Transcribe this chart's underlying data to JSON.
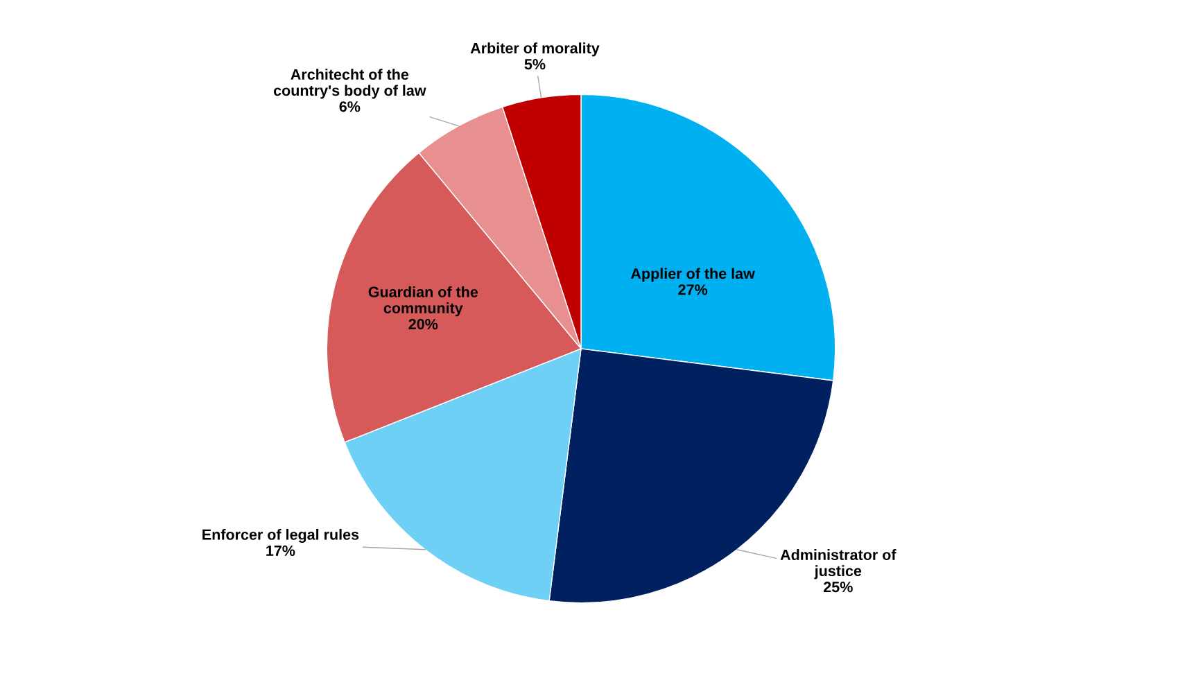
{
  "chart_data": {
    "type": "pie",
    "categories": [
      "Applier of the law",
      "Administrator of\njustice",
      "Enforcer of legal rules",
      "Guardian of the\ncommunity",
      "Architecht of the\ncountry's body of law",
      "Arbiter of morality"
    ],
    "values": [
      27,
      25,
      17,
      20,
      6,
      5
    ],
    "value_labels": [
      "27%",
      "25%",
      "17%",
      "20%",
      "6%",
      "5%"
    ],
    "colors": [
      "#00b0f0",
      "#002060",
      "#6fd0f5",
      "#d65a5a",
      "#e89090",
      "#c00000"
    ]
  }
}
